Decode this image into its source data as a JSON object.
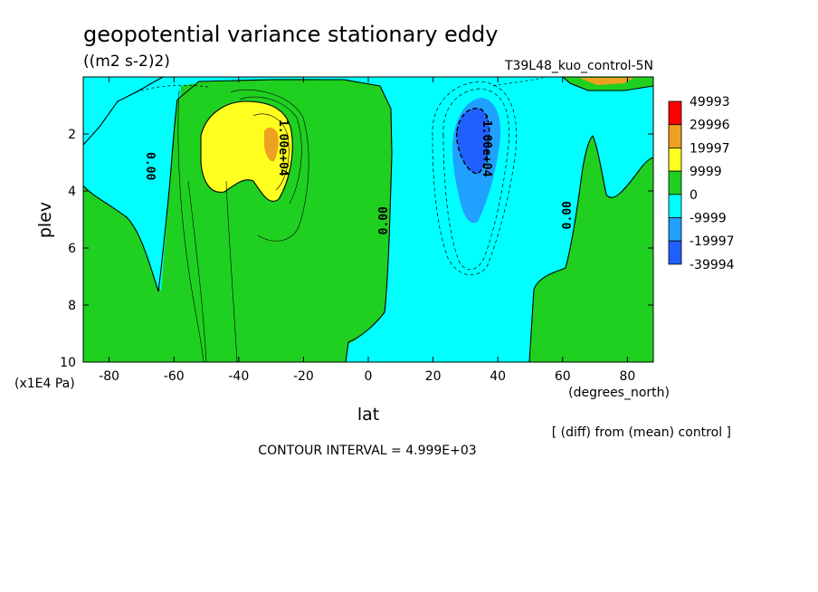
{
  "title": "geopotential variance stationary eddy",
  "units": "((m2 s-2)2)",
  "run_label": "T39L48_kuo_control-5N",
  "note_diff": "[ (diff) from (mean) control ]",
  "contour_interval_text": "CONTOUR INTERVAL = 4.999E+03",
  "chart_data": {
    "type": "heatmap",
    "xlabel": "lat",
    "xunits": "(degrees_north)",
    "ylabel": "plev",
    "yunits": "(x1E4 Pa)",
    "xlim": [
      -88,
      88
    ],
    "ylim": [
      0,
      10
    ],
    "y_inverted": true,
    "x_ticks": [
      -80,
      -60,
      -40,
      -20,
      0,
      20,
      40,
      60,
      80
    ],
    "x_tick_labels": [
      "-80",
      "-60",
      "-40",
      "-20",
      "0",
      "20",
      "40",
      "60",
      "80"
    ],
    "y_ticks": [
      2,
      4,
      6,
      8,
      10
    ],
    "y_tick_labels": [
      "2",
      "4",
      "6",
      "8",
      "10"
    ],
    "contour_labels": [
      "0.00",
      "1.00e+04",
      "0.00",
      "-1.00e+04",
      "0.00"
    ],
    "legend": {
      "levels": [
        "49993",
        "29996",
        "19997",
        "9999",
        "0",
        "-9999",
        "-19997",
        "-39994"
      ],
      "colors": [
        "#ff0000",
        "#f0a020",
        "#ffff20",
        "#20d020",
        "#00ffff",
        "#20a0ff",
        "#2060ff"
      ]
    }
  }
}
